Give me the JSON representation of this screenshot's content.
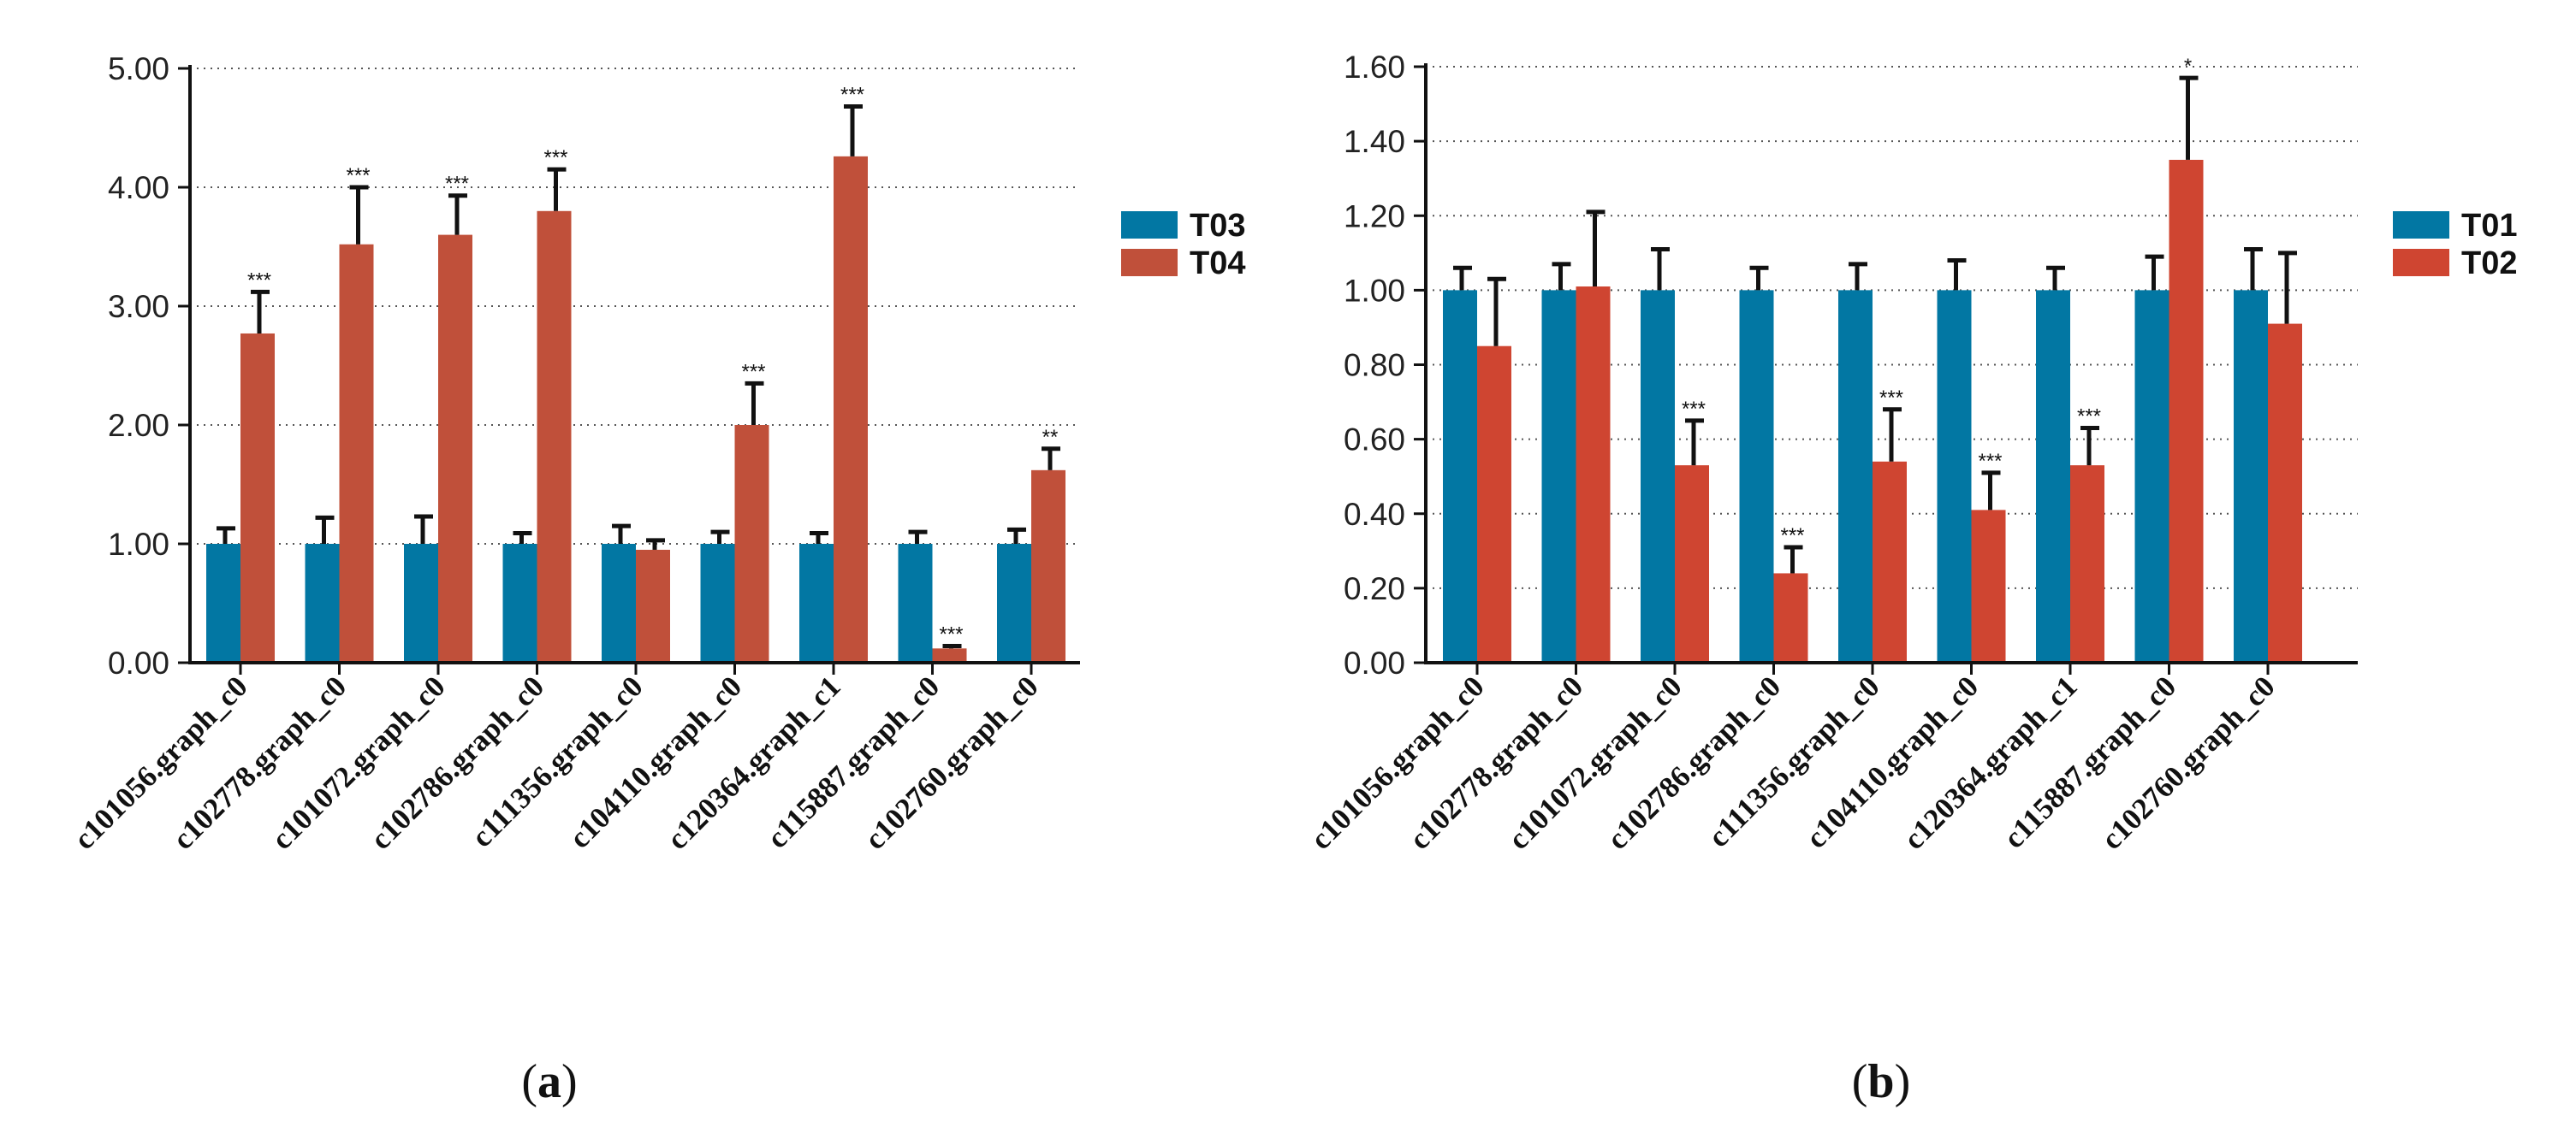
{
  "chart_data": [
    {
      "type": "bar",
      "panel": "a",
      "caption": [
        "(",
        "a",
        ")"
      ],
      "categories": [
        "c101056.graph_c0",
        "c102778.graph_c0",
        "c101072.graph_c0",
        "c102786.graph_c0",
        "c111356.graph_c0",
        "c104110.graph_c0",
        "c120364.graph_c1",
        "c115887.graph_c0",
        "c102760.graph_c0"
      ],
      "ylim": [
        0,
        5
      ],
      "yticks": [
        "0.00",
        "1.00",
        "2.00",
        "3.00",
        "4.00",
        "5.00"
      ],
      "ytick_values": [
        0,
        1,
        2,
        3,
        4,
        5
      ],
      "legend_position": "right",
      "series": [
        {
          "name": "T03",
          "color": "#0277a3",
          "values": [
            1.0,
            1.0,
            1.0,
            1.0,
            1.0,
            1.0,
            1.0,
            1.0,
            1.0
          ],
          "errors": [
            0.13,
            0.22,
            0.23,
            0.09,
            0.15,
            0.1,
            0.09,
            0.1,
            0.12
          ],
          "significance": [
            "",
            "",
            "",
            "",
            "",
            "",
            "",
            "",
            ""
          ]
        },
        {
          "name": "T04",
          "color": "#c0503a",
          "values": [
            2.77,
            3.52,
            3.6,
            3.8,
            0.95,
            2.0,
            4.26,
            0.12,
            1.62
          ],
          "errors": [
            0.35,
            0.48,
            0.33,
            0.35,
            0.08,
            0.35,
            0.42,
            0.02,
            0.18
          ],
          "significance": [
            "***",
            "***",
            "***",
            "***",
            "",
            "***",
            "***",
            "***",
            "**"
          ]
        }
      ]
    },
    {
      "type": "bar",
      "panel": "b",
      "caption": [
        "(",
        "b",
        ")"
      ],
      "categories": [
        "c101056.graph_c0",
        "c102778.graph_c0",
        "c101072.graph_c0",
        "c102786.graph_c0",
        "c111356.graph_c0",
        "c104110.graph_c0",
        "c120364.graph_c1",
        "c115887.graph_c0",
        "c102760.graph_c0"
      ],
      "ylim": [
        0,
        1.6
      ],
      "yticks": [
        "0.00",
        "0.20",
        "0.40",
        "0.60",
        "0.80",
        "1.00",
        "1.20",
        "1.40",
        "1.60"
      ],
      "ytick_values": [
        0,
        0.2,
        0.4,
        0.6,
        0.8,
        1.0,
        1.2,
        1.4,
        1.6
      ],
      "legend_position": "right",
      "series": [
        {
          "name": "T01",
          "color": "#0277a3",
          "values": [
            1.0,
            1.0,
            1.0,
            1.0,
            1.0,
            1.0,
            1.0,
            1.0,
            1.0
          ],
          "errors": [
            0.06,
            0.07,
            0.11,
            0.06,
            0.07,
            0.08,
            0.06,
            0.09,
            0.11
          ],
          "significance": [
            "",
            "",
            "",
            "",
            "",
            "",
            "",
            "",
            ""
          ]
        },
        {
          "name": "T02",
          "color": "#cf4531",
          "values": [
            0.85,
            1.01,
            0.53,
            0.24,
            0.54,
            0.41,
            0.53,
            1.35,
            0.91
          ],
          "errors": [
            0.18,
            0.2,
            0.12,
            0.07,
            0.14,
            0.1,
            0.1,
            0.22,
            0.19
          ],
          "significance": [
            "",
            "",
            "***",
            "***",
            "***",
            "***",
            "***",
            "*",
            ""
          ]
        }
      ]
    }
  ]
}
